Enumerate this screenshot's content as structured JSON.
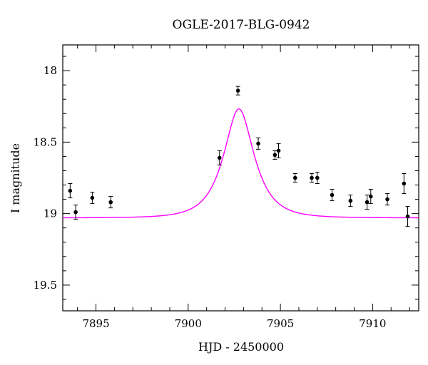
{
  "chart_data": {
    "type": "scatter",
    "title": "OGLE-2017-BLG-0942",
    "xlabel": "HJD - 2450000",
    "ylabel": "I magnitude",
    "xlim": [
      7893.2,
      7912.5
    ],
    "ylim": [
      19.68,
      17.82
    ],
    "y_inverted": true,
    "grid": false,
    "x_ticks": [
      7895,
      7900,
      7905,
      7910
    ],
    "x_tick_labels": [
      "7895",
      "7900",
      "7905",
      "7910"
    ],
    "y_ticks": [
      18,
      18.5,
      19,
      19.5
    ],
    "y_tick_labels": [
      "18",
      "18.5",
      "19",
      "19.5"
    ],
    "series": [
      {
        "type": "scatter",
        "color": "#000000",
        "points": [
          {
            "x": 7893.6,
            "y": 18.84,
            "err": 0.05
          },
          {
            "x": 7893.9,
            "y": 18.99,
            "err": 0.05
          },
          {
            "x": 7894.8,
            "y": 18.89,
            "err": 0.04
          },
          {
            "x": 7895.8,
            "y": 18.92,
            "err": 0.04
          },
          {
            "x": 7901.7,
            "y": 18.61,
            "err": 0.05
          },
          {
            "x": 7902.7,
            "y": 18.14,
            "err": 0.03
          },
          {
            "x": 7903.8,
            "y": 18.51,
            "err": 0.04
          },
          {
            "x": 7904.7,
            "y": 18.59,
            "err": 0.03
          },
          {
            "x": 7904.9,
            "y": 18.56,
            "err": 0.05
          },
          {
            "x": 7905.8,
            "y": 18.75,
            "err": 0.03
          },
          {
            "x": 7906.7,
            "y": 18.75,
            "err": 0.03
          },
          {
            "x": 7907.0,
            "y": 18.75,
            "err": 0.04
          },
          {
            "x": 7907.8,
            "y": 18.87,
            "err": 0.04
          },
          {
            "x": 7908.8,
            "y": 18.91,
            "err": 0.04
          },
          {
            "x": 7909.7,
            "y": 18.92,
            "err": 0.05
          },
          {
            "x": 7909.9,
            "y": 18.88,
            "err": 0.05
          },
          {
            "x": 7910.8,
            "y": 18.9,
            "err": 0.04
          },
          {
            "x": 7911.7,
            "y": 18.79,
            "err": 0.07
          },
          {
            "x": 7911.9,
            "y": 19.02,
            "err": 0.07
          }
        ]
      },
      {
        "type": "line",
        "color": "#ff00ff",
        "model": {
          "t0": 7902.75,
          "tE": 1.35,
          "u0": 0.55,
          "m_base": 19.03
        }
      }
    ]
  }
}
